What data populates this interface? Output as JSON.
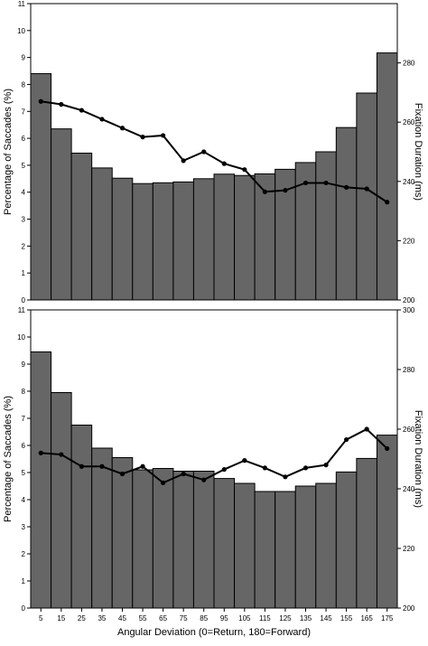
{
  "figure": {
    "xlabel": "Angular Deviation (0=Return, 180=Forward)"
  },
  "chart_data": [
    {
      "type": "bar",
      "panel": "top",
      "categories": [
        "5",
        "15",
        "25",
        "35",
        "45",
        "55",
        "65",
        "75",
        "85",
        "95",
        "105",
        "115",
        "125",
        "135",
        "145",
        "155",
        "165",
        "175"
      ],
      "ylabel": "Percentage of Saccades (%)",
      "y2label": "Fixation Duration (ms)",
      "ylim": [
        0,
        11
      ],
      "y2lim": [
        200,
        300
      ],
      "yticks": [
        "0",
        "1",
        "2",
        "3",
        "4",
        "5",
        "6",
        "7",
        "8",
        "9",
        "10",
        "11"
      ],
      "y2ticks": [
        "200",
        "220",
        "240",
        "260",
        "280"
      ],
      "xticks": [],
      "bar_color": "#666666",
      "line_color": "#000000",
      "series": [
        {
          "axis": "left",
          "kind": "bar",
          "values": [
            8.4,
            6.35,
            5.45,
            4.9,
            4.52,
            4.32,
            4.35,
            4.38,
            4.5,
            4.67,
            4.62,
            4.68,
            4.85,
            5.1,
            5.5,
            6.4,
            7.68,
            9.17
          ]
        },
        {
          "axis": "right",
          "kind": "line",
          "values": [
            267,
            266,
            264,
            261,
            258,
            255,
            255.5,
            247,
            250,
            246,
            244,
            236.5,
            237,
            239.5,
            239.5,
            238,
            237.5,
            233
          ]
        }
      ]
    },
    {
      "type": "bar",
      "panel": "bottom",
      "categories": [
        "5",
        "15",
        "25",
        "35",
        "45",
        "55",
        "65",
        "75",
        "85",
        "95",
        "105",
        "115",
        "125",
        "135",
        "145",
        "155",
        "165",
        "175"
      ],
      "ylabel": "Percentage of Saccades (%)",
      "y2label": "Fixation Duration (ms)",
      "ylim": [
        0,
        11
      ],
      "y2lim": [
        200,
        300
      ],
      "yticks": [
        "0",
        "1",
        "2",
        "3",
        "4",
        "5",
        "6",
        "7",
        "8",
        "9",
        "10",
        "11"
      ],
      "y2ticks": [
        "200",
        "220",
        "240",
        "260",
        "280",
        "300"
      ],
      "xticks": [
        "5",
        "15",
        "25",
        "35",
        "45",
        "55",
        "65",
        "75",
        "85",
        "95",
        "105",
        "115",
        "125",
        "135",
        "145",
        "155",
        "165",
        "175"
      ],
      "bar_color": "#666666",
      "line_color": "#000000",
      "series": [
        {
          "axis": "left",
          "kind": "bar",
          "values": [
            9.45,
            7.95,
            6.75,
            5.9,
            5.55,
            5.1,
            5.15,
            5.05,
            5.05,
            4.78,
            4.6,
            4.3,
            4.3,
            4.5,
            4.6,
            5.02,
            5.52,
            6.38
          ]
        },
        {
          "axis": "right",
          "kind": "line",
          "values": [
            252,
            251.5,
            247.5,
            247.5,
            245,
            247.5,
            242,
            245,
            243,
            246.5,
            249.5,
            247,
            244,
            247,
            248,
            256.5,
            260,
            253.5
          ]
        }
      ]
    }
  ]
}
